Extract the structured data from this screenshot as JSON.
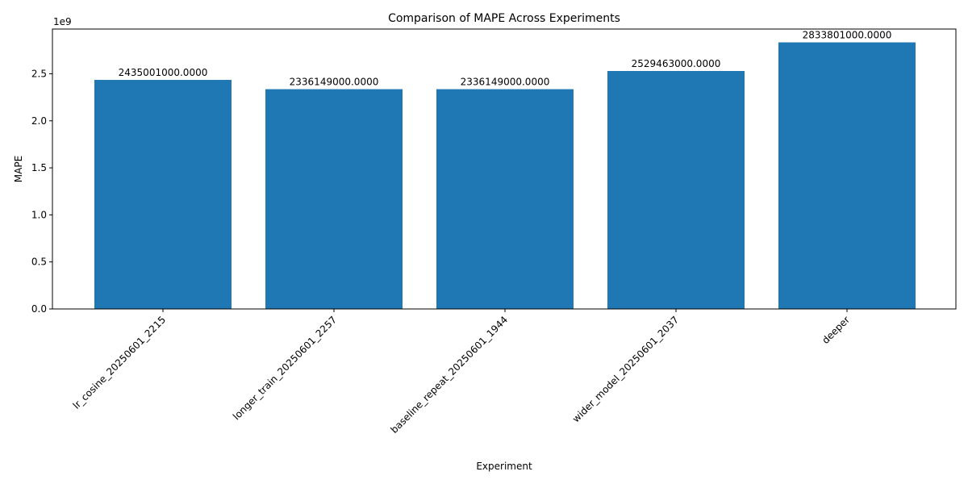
{
  "chart_data": {
    "type": "bar",
    "title": "Comparison of MAPE Across Experiments",
    "xlabel": "Experiment",
    "ylabel": "MAPE",
    "offset_label": "1e9",
    "categories": [
      "lr_cosine_20250601_2215",
      "longer_train_20250601_2257",
      "baseline_repeat_20250601_1944",
      "wider_model_20250601_2037",
      "deeper"
    ],
    "values": [
      2435001000,
      2336149000,
      2336149000,
      2529463000,
      2833801000
    ],
    "value_labels": [
      "2435001000.0000",
      "2336149000.0000",
      "2336149000.0000",
      "2529463000.0000",
      "2833801000.0000"
    ],
    "ylim": [
      0,
      2975491050
    ],
    "yticks": [
      0,
      500000000,
      1000000000,
      1500000000,
      2000000000,
      2500000000
    ],
    "ytick_labels": [
      "0.0",
      "0.5",
      "1.0",
      "1.5",
      "2.0",
      "2.5"
    ],
    "bar_color": "#1f77b4",
    "grid": false,
    "legend": "none"
  }
}
